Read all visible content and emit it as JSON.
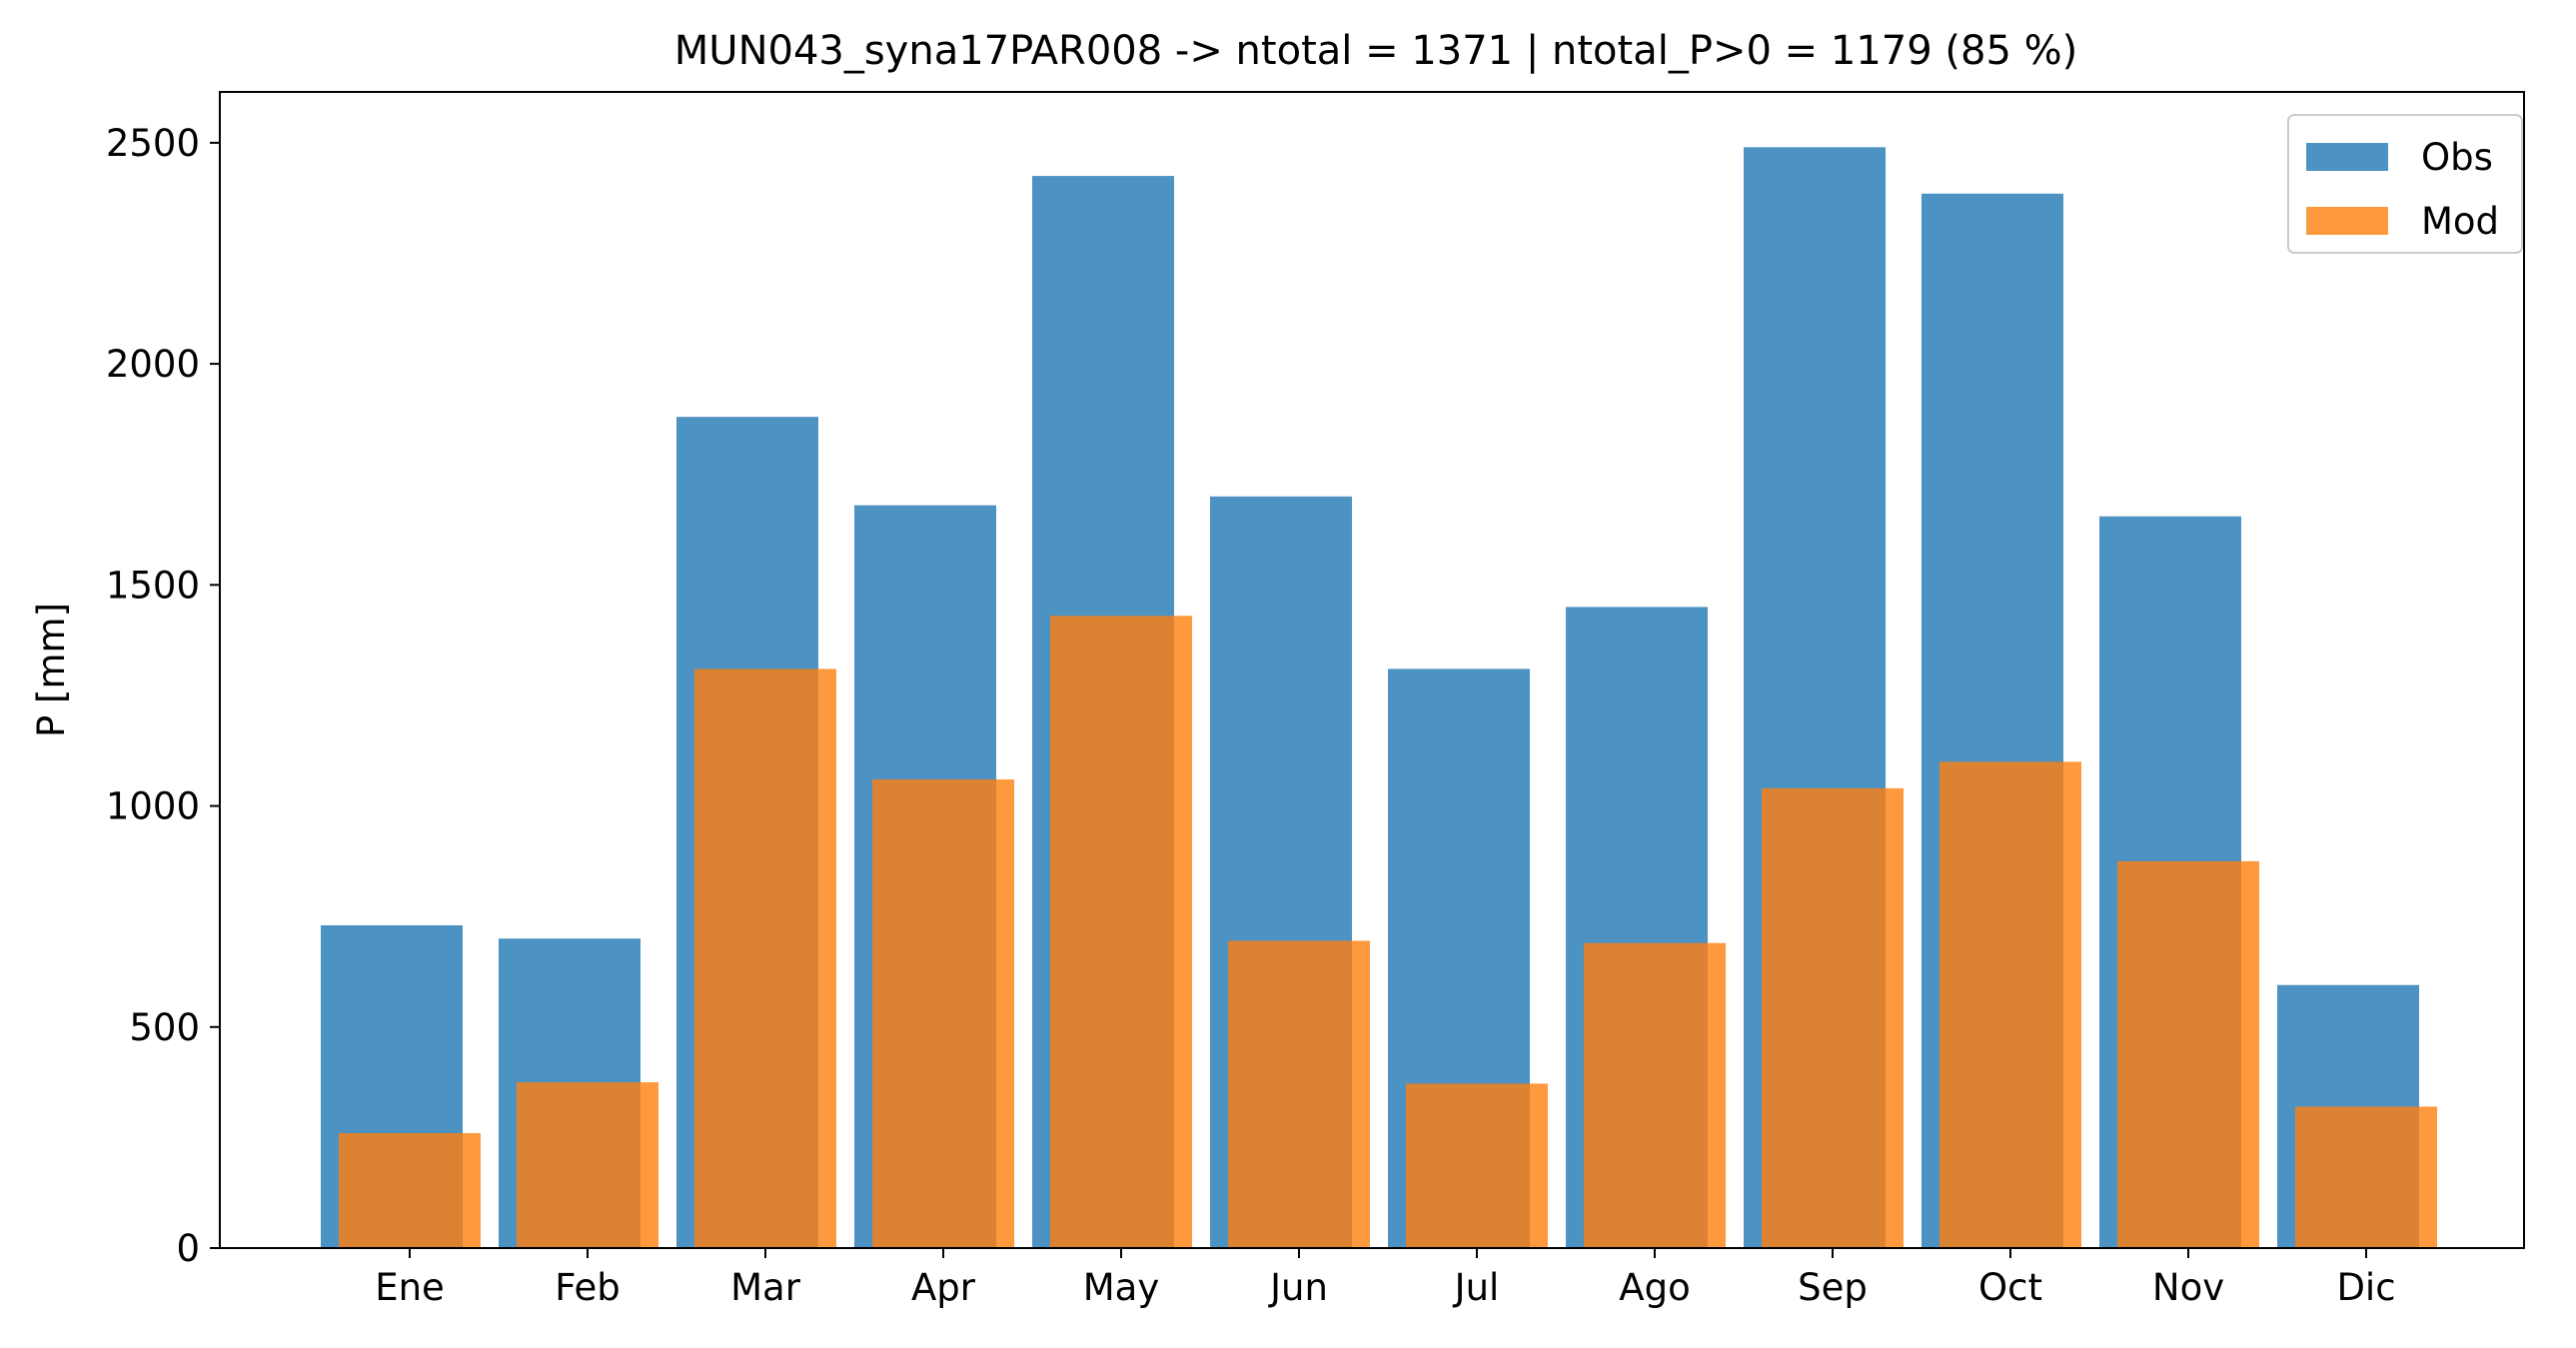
{
  "chart_data": {
    "type": "bar",
    "title": "MUN043_syna17PAR008 -> ntotal = 1371 | ntotal_P>0 = 1179 (85 %)",
    "xlabel": "",
    "ylabel": "P [mm]",
    "categories": [
      "Ene",
      "Feb",
      "Mar",
      "Apr",
      "May",
      "Jun",
      "Jul",
      "Ago",
      "Sep",
      "Oct",
      "Nov",
      "Dic"
    ],
    "series": [
      {
        "name": "Obs",
        "color": "#1f77b4",
        "values": [
          730,
          700,
          1880,
          1680,
          2425,
          1700,
          1310,
          1450,
          2490,
          2385,
          1655,
          595
        ]
      },
      {
        "name": "Mod",
        "color": "#ff7f0e",
        "values": [
          260,
          375,
          1310,
          1060,
          1430,
          695,
          372,
          690,
          1040,
          1100,
          875,
          320
        ]
      }
    ],
    "ylim": [
      0,
      2615
    ],
    "yticks": [
      0,
      500,
      1000,
      1500,
      2000,
      2500
    ],
    "grid": false,
    "legend_position": "upper right",
    "bar_opacity": 0.8
  }
}
